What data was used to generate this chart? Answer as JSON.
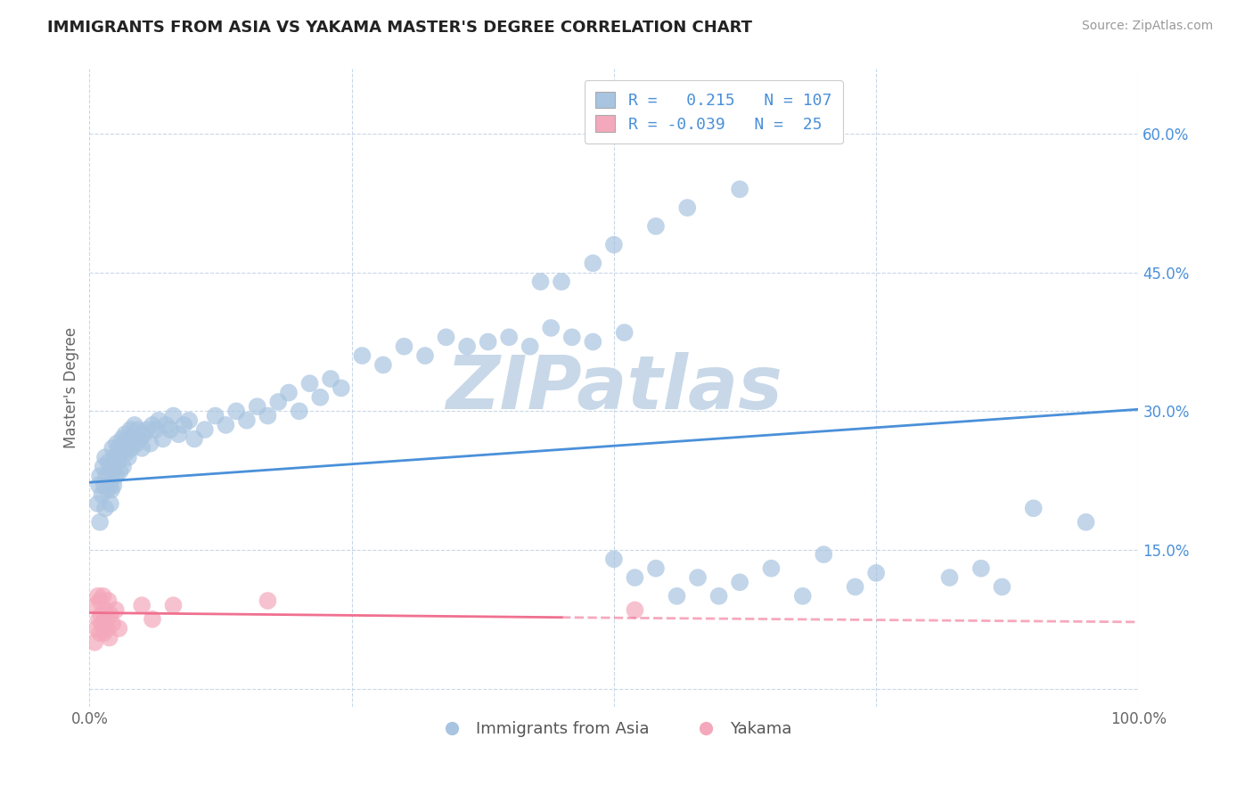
{
  "title": "IMMIGRANTS FROM ASIA VS YAKAMA MASTER'S DEGREE CORRELATION CHART",
  "source_text": "Source: ZipAtlas.com",
  "ylabel": "Master's Degree",
  "xlim": [
    0.0,
    1.0
  ],
  "ylim": [
    -0.02,
    0.67
  ],
  "xticks": [
    0.0,
    0.25,
    0.5,
    0.75,
    1.0
  ],
  "xtick_labels": [
    "0.0%",
    "",
    "",
    "",
    "100.0%"
  ],
  "ytick_labels": [
    "",
    "15.0%",
    "30.0%",
    "45.0%",
    "60.0%"
  ],
  "yticks": [
    0.0,
    0.15,
    0.3,
    0.45,
    0.6
  ],
  "blue_r": 0.215,
  "blue_n": 107,
  "pink_r": -0.039,
  "pink_n": 25,
  "blue_color": "#a8c4e0",
  "pink_color": "#f4a8bb",
  "blue_line_color": "#4a90d9",
  "pink_line_color": "#f07090",
  "watermark_color": "#c8d8e8",
  "background_color": "#ffffff",
  "grid_color": "#c8d8e8",
  "legend_label_blue": "Immigrants from Asia",
  "legend_label_pink": "Yakama",
  "blue_line_x0": 0.0,
  "blue_line_y0": 0.223,
  "blue_line_x1": 1.0,
  "blue_line_y1": 0.302,
  "pink_line_x0": 0.0,
  "pink_line_y0": 0.082,
  "pink_line_x1": 1.0,
  "pink_line_y1": 0.072,
  "blue_scatter_x": [
    0.008,
    0.009,
    0.01,
    0.01,
    0.012,
    0.013,
    0.014,
    0.015,
    0.015,
    0.016,
    0.017,
    0.018,
    0.019,
    0.02,
    0.02,
    0.021,
    0.022,
    0.022,
    0.023,
    0.024,
    0.025,
    0.026,
    0.027,
    0.028,
    0.029,
    0.03,
    0.031,
    0.032,
    0.033,
    0.034,
    0.035,
    0.036,
    0.037,
    0.038,
    0.039,
    0.04,
    0.042,
    0.043,
    0.045,
    0.046,
    0.048,
    0.05,
    0.052,
    0.055,
    0.058,
    0.06,
    0.063,
    0.066,
    0.07,
    0.073,
    0.077,
    0.08,
    0.085,
    0.09,
    0.095,
    0.1,
    0.11,
    0.12,
    0.13,
    0.14,
    0.15,
    0.16,
    0.17,
    0.18,
    0.19,
    0.2,
    0.21,
    0.22,
    0.23,
    0.24,
    0.26,
    0.28,
    0.3,
    0.32,
    0.34,
    0.36,
    0.38,
    0.4,
    0.42,
    0.44,
    0.46,
    0.48,
    0.5,
    0.51,
    0.52,
    0.54,
    0.56,
    0.58,
    0.6,
    0.62,
    0.65,
    0.68,
    0.7,
    0.73,
    0.75,
    0.82,
    0.85,
    0.87,
    0.9,
    0.95,
    0.43,
    0.45,
    0.48,
    0.5,
    0.54,
    0.57,
    0.62
  ],
  "blue_scatter_y": [
    0.2,
    0.22,
    0.18,
    0.23,
    0.21,
    0.24,
    0.22,
    0.25,
    0.195,
    0.23,
    0.215,
    0.245,
    0.22,
    0.2,
    0.24,
    0.215,
    0.235,
    0.26,
    0.22,
    0.25,
    0.23,
    0.265,
    0.245,
    0.26,
    0.235,
    0.255,
    0.27,
    0.24,
    0.26,
    0.275,
    0.255,
    0.27,
    0.25,
    0.265,
    0.28,
    0.26,
    0.27,
    0.285,
    0.265,
    0.28,
    0.27,
    0.26,
    0.275,
    0.28,
    0.265,
    0.285,
    0.28,
    0.29,
    0.27,
    0.285,
    0.28,
    0.295,
    0.275,
    0.285,
    0.29,
    0.27,
    0.28,
    0.295,
    0.285,
    0.3,
    0.29,
    0.305,
    0.295,
    0.31,
    0.32,
    0.3,
    0.33,
    0.315,
    0.335,
    0.325,
    0.36,
    0.35,
    0.37,
    0.36,
    0.38,
    0.37,
    0.375,
    0.38,
    0.37,
    0.39,
    0.38,
    0.375,
    0.14,
    0.385,
    0.12,
    0.13,
    0.1,
    0.12,
    0.1,
    0.115,
    0.13,
    0.1,
    0.145,
    0.11,
    0.125,
    0.12,
    0.13,
    0.11,
    0.195,
    0.18,
    0.44,
    0.44,
    0.46,
    0.48,
    0.5,
    0.52,
    0.54
  ],
  "pink_scatter_x": [
    0.005,
    0.006,
    0.007,
    0.008,
    0.009,
    0.01,
    0.01,
    0.011,
    0.012,
    0.013,
    0.014,
    0.015,
    0.016,
    0.017,
    0.018,
    0.019,
    0.02,
    0.022,
    0.025,
    0.028,
    0.05,
    0.06,
    0.08,
    0.17,
    0.52
  ],
  "pink_scatter_y": [
    0.05,
    0.09,
    0.065,
    0.1,
    0.075,
    0.06,
    0.095,
    0.08,
    0.07,
    0.1,
    0.06,
    0.085,
    0.075,
    0.065,
    0.095,
    0.055,
    0.08,
    0.07,
    0.085,
    0.065,
    0.09,
    0.075,
    0.09,
    0.095,
    0.085
  ]
}
